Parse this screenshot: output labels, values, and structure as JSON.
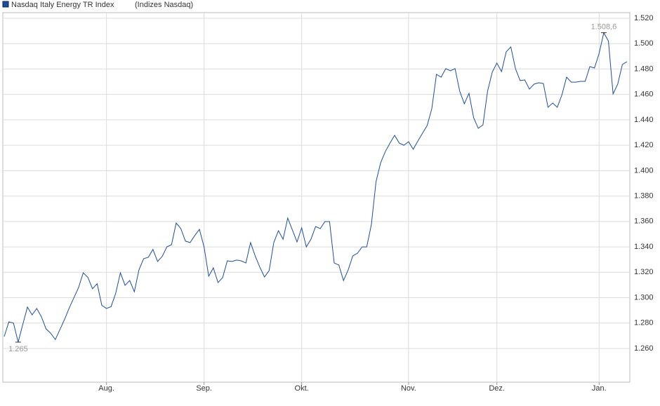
{
  "chart_data": {
    "type": "line",
    "series": [
      {
        "name": "Nasdaq Italy Energy TR Index",
        "color": "#1f4e96",
        "values": [
          1269.4,
          1281,
          1280,
          1265,
          1279,
          1292.6,
          1286.5,
          1291.5,
          1285,
          1275.5,
          1272,
          1267,
          1275,
          1283,
          1292,
          1300,
          1308,
          1319.6,
          1316,
          1307,
          1311,
          1294,
          1291.5,
          1293,
          1303.6,
          1319.6,
          1309.7,
          1313.5,
          1304.7,
          1322,
          1330.7,
          1331.8,
          1338,
          1328.5,
          1332.5,
          1340,
          1341.7,
          1358.8,
          1354.4,
          1344.5,
          1343.4,
          1348.9,
          1353.8,
          1340,
          1316.9,
          1323.5,
          1311.9,
          1315.8,
          1329,
          1328.5,
          1329.6,
          1329,
          1327.3,
          1343.4,
          1332.9,
          1324,
          1316.3,
          1321.3,
          1343.4,
          1352.7,
          1346,
          1362.7,
          1353.3,
          1343.9,
          1355,
          1340,
          1346,
          1356,
          1354.4,
          1359.9,
          1359.9,
          1327.3,
          1325.7,
          1313.5,
          1321.8,
          1332.9,
          1335,
          1340,
          1340,
          1357.7,
          1391.4,
          1406.3,
          1415,
          1421.7,
          1427.8,
          1421.7,
          1420,
          1422.8,
          1416.8,
          1423.3,
          1429.5,
          1435.5,
          1448.8,
          1475.8,
          1473.6,
          1480.3,
          1478.6,
          1480.3,
          1462.6,
          1452.6,
          1460.9,
          1441.6,
          1433.3,
          1436,
          1462.6,
          1477.5,
          1484.7,
          1478,
          1493.5,
          1497.4,
          1480.3,
          1470.9,
          1471.4,
          1464.2,
          1468.1,
          1469.2,
          1468.6,
          1449.9,
          1453.2,
          1449.9,
          1459.8,
          1473.6,
          1469.7,
          1469.7,
          1470.3,
          1470.3,
          1481.9,
          1480.8,
          1492.4,
          1508.6,
          1502,
          1460.4,
          1468.1,
          1483.6,
          1485.8
        ]
      }
    ],
    "subtitle": "(Indizes Nasdaq)",
    "xlim": [
      -0.3,
      134.6
    ],
    "xticks": [
      {
        "value": 22,
        "label": "Aug."
      },
      {
        "value": 43,
        "label": "Sep."
      },
      {
        "value": 64,
        "label": "Okt."
      },
      {
        "value": 87,
        "label": "Nov."
      },
      {
        "value": 106,
        "label": "Dez."
      },
      {
        "value": 128,
        "label": "Jan."
      }
    ],
    "ylim": [
      1233.5,
      1524.4
    ],
    "yticks": [
      {
        "value": 1260,
        "label": "1.260"
      },
      {
        "value": 1280,
        "label": "1.280"
      },
      {
        "value": 1300,
        "label": "1.300"
      },
      {
        "value": 1320,
        "label": "1.320"
      },
      {
        "value": 1340,
        "label": "1.340"
      },
      {
        "value": 1360,
        "label": "1.360"
      },
      {
        "value": 1380,
        "label": "1.380"
      },
      {
        "value": 1400,
        "label": "1.400"
      },
      {
        "value": 1420,
        "label": "1.420"
      },
      {
        "value": 1440,
        "label": "1.440"
      },
      {
        "value": 1460,
        "label": "1.460"
      },
      {
        "value": 1480,
        "label": "1.480"
      },
      {
        "value": 1500,
        "label": "1.500"
      },
      {
        "value": 1520,
        "label": "1.520"
      }
    ],
    "annotations": [
      {
        "x": 129,
        "y": 1508.6,
        "label": "1.508,6"
      },
      {
        "x": 3,
        "y": 1265,
        "label": "1.265"
      }
    ],
    "grid": true
  }
}
